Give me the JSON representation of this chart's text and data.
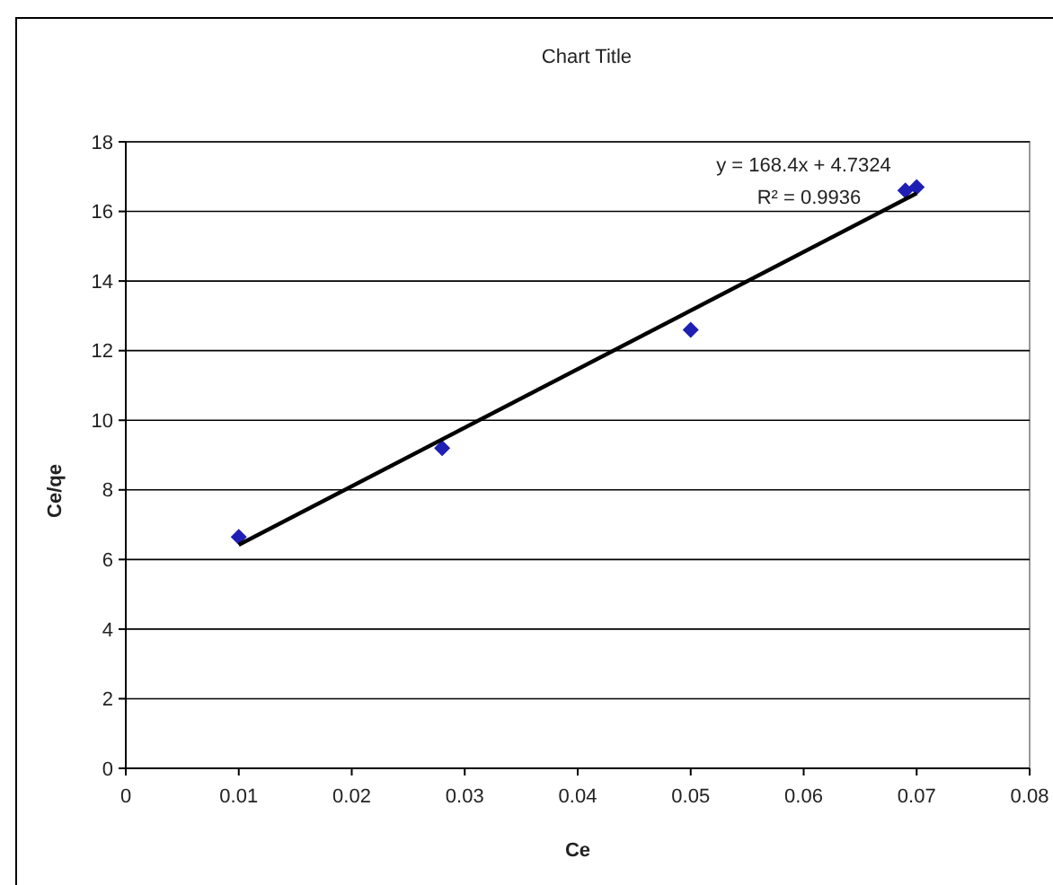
{
  "chart_data": {
    "type": "scatter",
    "title": "Chart Title",
    "xlabel": "Ce",
    "ylabel": "Ce/qe",
    "xlim": [
      0,
      0.08
    ],
    "xticks": [
      0,
      0.01,
      0.02,
      0.03,
      0.04,
      0.05,
      0.06,
      0.07,
      0.08
    ],
    "ylim": [
      0,
      18
    ],
    "yticks": [
      0,
      2,
      4,
      6,
      8,
      10,
      12,
      14,
      16,
      18
    ],
    "grid": "y",
    "marker": "diamond",
    "series": [
      {
        "color": "#1f1fb4",
        "x": [
          0.01,
          0.028,
          0.05,
          0.069,
          0.07
        ],
        "values": [
          6.65,
          9.2,
          12.6,
          16.6,
          16.7
        ]
      },
      {
        "type": "line",
        "color": "#000000",
        "x": [
          0.01,
          0.07
        ],
        "values": [
          6.42,
          16.52
        ],
        "marker": "none",
        "line_style": "solid"
      }
    ],
    "annotations": [
      "y = 168.4x + 4.7324",
      "R² = 0.9936"
    ]
  }
}
